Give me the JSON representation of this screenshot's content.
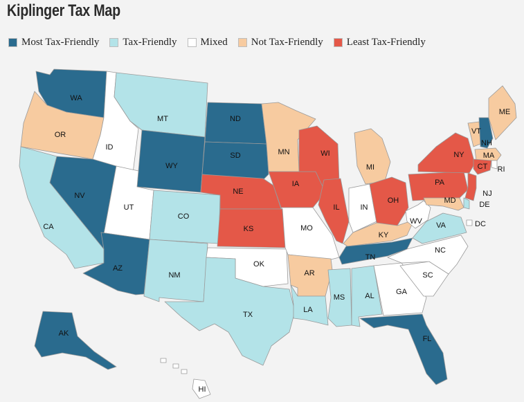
{
  "title": "Kiplinger Tax Map",
  "legend": [
    {
      "key": "most",
      "label": "Most Tax-Friendly",
      "color": "#2a6b8e"
    },
    {
      "key": "tax",
      "label": "Tax-Friendly",
      "color": "#b3e3e8"
    },
    {
      "key": "mixed",
      "label": "Mixed",
      "color": "#ffffff"
    },
    {
      "key": "not",
      "label": "Not Tax-Friendly",
      "color": "#f7cba0"
    },
    {
      "key": "least",
      "label": "Least Tax-Friendly",
      "color": "#e45848"
    }
  ],
  "states": [
    {
      "abbr": "WA",
      "category": "most"
    },
    {
      "abbr": "OR",
      "category": "not"
    },
    {
      "abbr": "CA",
      "category": "tax"
    },
    {
      "abbr": "ID",
      "category": "mixed"
    },
    {
      "abbr": "NV",
      "category": "most"
    },
    {
      "abbr": "MT",
      "category": "tax"
    },
    {
      "abbr": "WY",
      "category": "most"
    },
    {
      "abbr": "UT",
      "category": "mixed"
    },
    {
      "abbr": "AZ",
      "category": "most"
    },
    {
      "abbr": "CO",
      "category": "tax"
    },
    {
      "abbr": "NM",
      "category": "tax"
    },
    {
      "abbr": "ND",
      "category": "most"
    },
    {
      "abbr": "SD",
      "category": "most"
    },
    {
      "abbr": "NE",
      "category": "least"
    },
    {
      "abbr": "KS",
      "category": "least"
    },
    {
      "abbr": "OK",
      "category": "mixed"
    },
    {
      "abbr": "TX",
      "category": "tax"
    },
    {
      "abbr": "MN",
      "category": "not"
    },
    {
      "abbr": "IA",
      "category": "least"
    },
    {
      "abbr": "MO",
      "category": "mixed"
    },
    {
      "abbr": "AR",
      "category": "not"
    },
    {
      "abbr": "LA",
      "category": "tax"
    },
    {
      "abbr": "WI",
      "category": "least"
    },
    {
      "abbr": "IL",
      "category": "least"
    },
    {
      "abbr": "MI",
      "category": "not"
    },
    {
      "abbr": "IN",
      "category": "mixed"
    },
    {
      "abbr": "OH",
      "category": "least"
    },
    {
      "abbr": "KY",
      "category": "not"
    },
    {
      "abbr": "TN",
      "category": "most"
    },
    {
      "abbr": "MS",
      "category": "tax"
    },
    {
      "abbr": "AL",
      "category": "tax"
    },
    {
      "abbr": "GA",
      "category": "mixed"
    },
    {
      "abbr": "FL",
      "category": "most"
    },
    {
      "abbr": "SC",
      "category": "mixed"
    },
    {
      "abbr": "NC",
      "category": "mixed"
    },
    {
      "abbr": "VA",
      "category": "tax"
    },
    {
      "abbr": "WV",
      "category": "mixed"
    },
    {
      "abbr": "PA",
      "category": "least"
    },
    {
      "abbr": "NY",
      "category": "least"
    },
    {
      "abbr": "VT",
      "category": "not"
    },
    {
      "abbr": "NH",
      "category": "most"
    },
    {
      "abbr": "ME",
      "category": "not"
    },
    {
      "abbr": "MA",
      "category": "not"
    },
    {
      "abbr": "RI",
      "category": "mixed"
    },
    {
      "abbr": "CT",
      "category": "least"
    },
    {
      "abbr": "NJ",
      "category": "least"
    },
    {
      "abbr": "DE",
      "category": "tax"
    },
    {
      "abbr": "MD",
      "category": "not"
    },
    {
      "abbr": "DC",
      "category": "mixed"
    },
    {
      "abbr": "AK",
      "category": "most"
    },
    {
      "abbr": "HI",
      "category": "mixed"
    }
  ]
}
